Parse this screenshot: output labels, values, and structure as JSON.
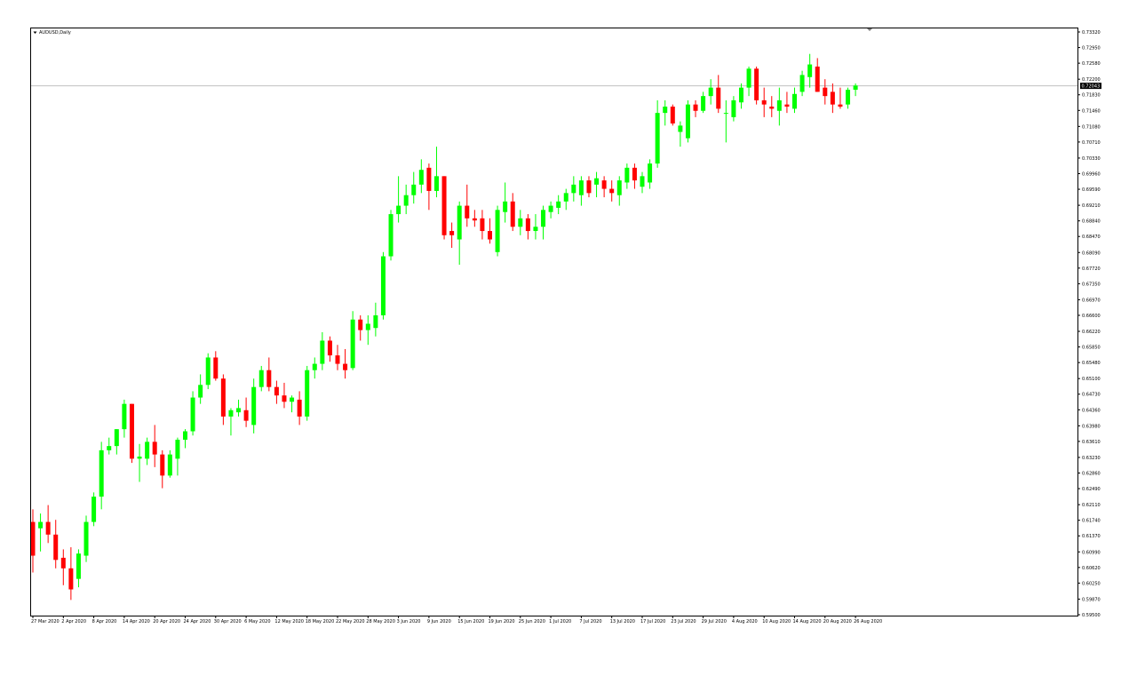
{
  "chart_data": {
    "type": "candlestick",
    "symbol": "AUDUSD,Daily",
    "current_price": 0.72043,
    "colors": {
      "bull": "#00ff00",
      "bear": "#ff0000",
      "frame": "#000000",
      "price_line": "#c0c0c0",
      "background": "#ffffff"
    },
    "y_range": [
      0.595,
      0.7332
    ],
    "y_ticks": [
      "0.73320",
      "0.72950",
      "0.72580",
      "0.72200",
      "0.71830",
      "0.71460",
      "0.71080",
      "0.70710",
      "0.70330",
      "0.69960",
      "0.69590",
      "0.69210",
      "0.68840",
      "0.68470",
      "0.68090",
      "0.67720",
      "0.67350",
      "0.66970",
      "0.66600",
      "0.66220",
      "0.65850",
      "0.65480",
      "0.65100",
      "0.64730",
      "0.64360",
      "0.63980",
      "0.63610",
      "0.63230",
      "0.62860",
      "0.62490",
      "0.62110",
      "0.61740",
      "0.61370",
      "0.60990",
      "0.60620",
      "0.60250",
      "0.59870",
      "0.59500"
    ],
    "x_labels": [
      {
        "bar": 0,
        "text": "27 Mar 2020"
      },
      {
        "bar": 4,
        "text": "2 Apr 2020"
      },
      {
        "bar": 8,
        "text": "8 Apr 2020"
      },
      {
        "bar": 12,
        "text": "14 Apr 2020"
      },
      {
        "bar": 16,
        "text": "20 Apr 2020"
      },
      {
        "bar": 20,
        "text": "24 Apr 2020"
      },
      {
        "bar": 24,
        "text": "30 Apr 2020"
      },
      {
        "bar": 28,
        "text": "6 May 2020"
      },
      {
        "bar": 32,
        "text": "12 May 2020"
      },
      {
        "bar": 36,
        "text": "18 May 2020"
      },
      {
        "bar": 40,
        "text": "22 May 2020"
      },
      {
        "bar": 44,
        "text": "28 May 2020"
      },
      {
        "bar": 48,
        "text": "3 Jun 2020"
      },
      {
        "bar": 52,
        "text": "9 Jun 2020"
      },
      {
        "bar": 56,
        "text": "15 Jun 2020"
      },
      {
        "bar": 60,
        "text": "19 Jun 2020"
      },
      {
        "bar": 64,
        "text": "25 Jun 2020"
      },
      {
        "bar": 68,
        "text": "1 Jul 2020"
      },
      {
        "bar": 72,
        "text": "7 Jul 2020"
      },
      {
        "bar": 76,
        "text": "13 Jul 2020"
      },
      {
        "bar": 80,
        "text": "17 Jul 2020"
      },
      {
        "bar": 84,
        "text": "23 Jul 2020"
      },
      {
        "bar": 88,
        "text": "29 Jul 2020"
      },
      {
        "bar": 92,
        "text": "4 Aug 2020"
      },
      {
        "bar": 96,
        "text": "10 Aug 2020"
      },
      {
        "bar": 100,
        "text": "14 Aug 2020"
      },
      {
        "bar": 104,
        "text": "20 Aug 2020"
      },
      {
        "bar": 108,
        "text": "26 Aug 2020"
      }
    ],
    "candles": [
      {
        "o": 0.617,
        "h": 0.62,
        "l": 0.605,
        "c": 0.609
      },
      {
        "o": 0.6155,
        "h": 0.619,
        "l": 0.61,
        "c": 0.617
      },
      {
        "o": 0.617,
        "h": 0.621,
        "l": 0.612,
        "c": 0.614
      },
      {
        "o": 0.614,
        "h": 0.6175,
        "l": 0.606,
        "c": 0.608
      },
      {
        "o": 0.6085,
        "h": 0.6105,
        "l": 0.602,
        "c": 0.606
      },
      {
        "o": 0.606,
        "h": 0.611,
        "l": 0.5985,
        "c": 0.601
      },
      {
        "o": 0.6035,
        "h": 0.6105,
        "l": 0.6015,
        "c": 0.6095
      },
      {
        "o": 0.609,
        "h": 0.6185,
        "l": 0.6075,
        "c": 0.617
      },
      {
        "o": 0.617,
        "h": 0.624,
        "l": 0.616,
        "c": 0.623
      },
      {
        "o": 0.623,
        "h": 0.636,
        "l": 0.62,
        "c": 0.634
      },
      {
        "o": 0.634,
        "h": 0.637,
        "l": 0.633,
        "c": 0.635
      },
      {
        "o": 0.635,
        "h": 0.639,
        "l": 0.633,
        "c": 0.639
      },
      {
        "o": 0.639,
        "h": 0.646,
        "l": 0.637,
        "c": 0.645
      },
      {
        "o": 0.645,
        "h": 0.645,
        "l": 0.631,
        "c": 0.632
      },
      {
        "o": 0.632,
        "h": 0.6355,
        "l": 0.6265,
        "c": 0.6325
      },
      {
        "o": 0.632,
        "h": 0.637,
        "l": 0.6305,
        "c": 0.636
      },
      {
        "o": 0.636,
        "h": 0.64,
        "l": 0.63,
        "c": 0.633
      },
      {
        "o": 0.633,
        "h": 0.634,
        "l": 0.625,
        "c": 0.628
      },
      {
        "o": 0.628,
        "h": 0.634,
        "l": 0.6275,
        "c": 0.633
      },
      {
        "o": 0.632,
        "h": 0.637,
        "l": 0.628,
        "c": 0.6365
      },
      {
        "o": 0.6365,
        "h": 0.639,
        "l": 0.6345,
        "c": 0.6385
      },
      {
        "o": 0.6385,
        "h": 0.648,
        "l": 0.6375,
        "c": 0.6465
      },
      {
        "o": 0.6465,
        "h": 0.652,
        "l": 0.645,
        "c": 0.6495
      },
      {
        "o": 0.6495,
        "h": 0.657,
        "l": 0.6485,
        "c": 0.656
      },
      {
        "o": 0.656,
        "h": 0.6575,
        "l": 0.6505,
        "c": 0.651
      },
      {
        "o": 0.651,
        "h": 0.652,
        "l": 0.64,
        "c": 0.642
      },
      {
        "o": 0.642,
        "h": 0.644,
        "l": 0.6375,
        "c": 0.6435
      },
      {
        "o": 0.643,
        "h": 0.646,
        "l": 0.642,
        "c": 0.644
      },
      {
        "o": 0.6435,
        "h": 0.6465,
        "l": 0.6395,
        "c": 0.641
      },
      {
        "o": 0.64,
        "h": 0.651,
        "l": 0.638,
        "c": 0.649
      },
      {
        "o": 0.649,
        "h": 0.654,
        "l": 0.648,
        "c": 0.653
      },
      {
        "o": 0.653,
        "h": 0.656,
        "l": 0.648,
        "c": 0.649
      },
      {
        "o": 0.649,
        "h": 0.6505,
        "l": 0.645,
        "c": 0.647
      },
      {
        "o": 0.647,
        "h": 0.65,
        "l": 0.644,
        "c": 0.6455
      },
      {
        "o": 0.6455,
        "h": 0.647,
        "l": 0.643,
        "c": 0.6465
      },
      {
        "o": 0.646,
        "h": 0.648,
        "l": 0.64,
        "c": 0.642
      },
      {
        "o": 0.642,
        "h": 0.654,
        "l": 0.641,
        "c": 0.653
      },
      {
        "o": 0.653,
        "h": 0.656,
        "l": 0.651,
        "c": 0.6545
      },
      {
        "o": 0.6545,
        "h": 0.662,
        "l": 0.653,
        "c": 0.66
      },
      {
        "o": 0.66,
        "h": 0.661,
        "l": 0.655,
        "c": 0.6565
      },
      {
        "o": 0.6565,
        "h": 0.659,
        "l": 0.653,
        "c": 0.6545
      },
      {
        "o": 0.6545,
        "h": 0.658,
        "l": 0.651,
        "c": 0.653
      },
      {
        "o": 0.6535,
        "h": 0.667,
        "l": 0.653,
        "c": 0.665
      },
      {
        "o": 0.665,
        "h": 0.666,
        "l": 0.66,
        "c": 0.6625
      },
      {
        "o": 0.6625,
        "h": 0.666,
        "l": 0.659,
        "c": 0.664
      },
      {
        "o": 0.663,
        "h": 0.669,
        "l": 0.661,
        "c": 0.666
      },
      {
        "o": 0.666,
        "h": 0.681,
        "l": 0.665,
        "c": 0.68
      },
      {
        "o": 0.68,
        "h": 0.691,
        "l": 0.679,
        "c": 0.69
      },
      {
        "o": 0.69,
        "h": 0.699,
        "l": 0.688,
        "c": 0.692
      },
      {
        "o": 0.692,
        "h": 0.697,
        "l": 0.69,
        "c": 0.6945
      },
      {
        "o": 0.6945,
        "h": 0.7,
        "l": 0.6925,
        "c": 0.697
      },
      {
        "o": 0.697,
        "h": 0.703,
        "l": 0.695,
        "c": 0.7005
      },
      {
        "o": 0.701,
        "h": 0.702,
        "l": 0.691,
        "c": 0.6955
      },
      {
        "o": 0.6955,
        "h": 0.706,
        "l": 0.694,
        "c": 0.699
      },
      {
        "o": 0.699,
        "h": 0.699,
        "l": 0.684,
        "c": 0.685
      },
      {
        "o": 0.686,
        "h": 0.688,
        "l": 0.682,
        "c": 0.685
      },
      {
        "o": 0.684,
        "h": 0.693,
        "l": 0.678,
        "c": 0.692
      },
      {
        "o": 0.692,
        "h": 0.697,
        "l": 0.687,
        "c": 0.689
      },
      {
        "o": 0.689,
        "h": 0.691,
        "l": 0.687,
        "c": 0.6885
      },
      {
        "o": 0.689,
        "h": 0.691,
        "l": 0.684,
        "c": 0.686
      },
      {
        "o": 0.686,
        "h": 0.689,
        "l": 0.683,
        "c": 0.684
      },
      {
        "o": 0.681,
        "h": 0.692,
        "l": 0.68,
        "c": 0.691
      },
      {
        "o": 0.6905,
        "h": 0.6975,
        "l": 0.688,
        "c": 0.693
      },
      {
        "o": 0.693,
        "h": 0.695,
        "l": 0.686,
        "c": 0.687
      },
      {
        "o": 0.687,
        "h": 0.691,
        "l": 0.685,
        "c": 0.689
      },
      {
        "o": 0.689,
        "h": 0.69,
        "l": 0.684,
        "c": 0.686
      },
      {
        "o": 0.686,
        "h": 0.69,
        "l": 0.684,
        "c": 0.687
      },
      {
        "o": 0.687,
        "h": 0.692,
        "l": 0.684,
        "c": 0.691
      },
      {
        "o": 0.6905,
        "h": 0.693,
        "l": 0.689,
        "c": 0.692
      },
      {
        "o": 0.6915,
        "h": 0.6945,
        "l": 0.69,
        "c": 0.693
      },
      {
        "o": 0.693,
        "h": 0.696,
        "l": 0.691,
        "c": 0.695
      },
      {
        "o": 0.695,
        "h": 0.699,
        "l": 0.693,
        "c": 0.697
      },
      {
        "o": 0.6945,
        "h": 0.699,
        "l": 0.692,
        "c": 0.698
      },
      {
        "o": 0.698,
        "h": 0.699,
        "l": 0.694,
        "c": 0.695
      },
      {
        "o": 0.697,
        "h": 0.7,
        "l": 0.694,
        "c": 0.6985
      },
      {
        "o": 0.698,
        "h": 0.699,
        "l": 0.694,
        "c": 0.696
      },
      {
        "o": 0.696,
        "h": 0.698,
        "l": 0.693,
        "c": 0.695
      },
      {
        "o": 0.6945,
        "h": 0.699,
        "l": 0.692,
        "c": 0.698
      },
      {
        "o": 0.6975,
        "h": 0.702,
        "l": 0.696,
        "c": 0.701
      },
      {
        "o": 0.701,
        "h": 0.702,
        "l": 0.696,
        "c": 0.698
      },
      {
        "o": 0.6965,
        "h": 0.7,
        "l": 0.695,
        "c": 0.699
      },
      {
        "o": 0.6975,
        "h": 0.703,
        "l": 0.696,
        "c": 0.702
      },
      {
        "o": 0.702,
        "h": 0.717,
        "l": 0.701,
        "c": 0.714
      },
      {
        "o": 0.714,
        "h": 0.717,
        "l": 0.711,
        "c": 0.7155
      },
      {
        "o": 0.7155,
        "h": 0.716,
        "l": 0.711,
        "c": 0.7115
      },
      {
        "o": 0.7095,
        "h": 0.712,
        "l": 0.706,
        "c": 0.711
      },
      {
        "o": 0.708,
        "h": 0.717,
        "l": 0.707,
        "c": 0.716
      },
      {
        "o": 0.716,
        "h": 0.717,
        "l": 0.713,
        "c": 0.7145
      },
      {
        "o": 0.7145,
        "h": 0.719,
        "l": 0.714,
        "c": 0.718
      },
      {
        "o": 0.718,
        "h": 0.722,
        "l": 0.716,
        "c": 0.72
      },
      {
        "o": 0.72,
        "h": 0.723,
        "l": 0.714,
        "c": 0.715
      },
      {
        "o": 0.714,
        "h": 0.717,
        "l": 0.707,
        "c": 0.714
      },
      {
        "o": 0.713,
        "h": 0.718,
        "l": 0.712,
        "c": 0.717
      },
      {
        "o": 0.7165,
        "h": 0.721,
        "l": 0.715,
        "c": 0.72
      },
      {
        "o": 0.72,
        "h": 0.725,
        "l": 0.718,
        "c": 0.7245
      },
      {
        "o": 0.7245,
        "h": 0.725,
        "l": 0.716,
        "c": 0.717
      },
      {
        "o": 0.717,
        "h": 0.72,
        "l": 0.713,
        "c": 0.716
      },
      {
        "o": 0.7155,
        "h": 0.718,
        "l": 0.713,
        "c": 0.715
      },
      {
        "o": 0.7145,
        "h": 0.72,
        "l": 0.711,
        "c": 0.717
      },
      {
        "o": 0.716,
        "h": 0.719,
        "l": 0.714,
        "c": 0.7155
      },
      {
        "o": 0.715,
        "h": 0.72,
        "l": 0.714,
        "c": 0.7185
      },
      {
        "o": 0.719,
        "h": 0.724,
        "l": 0.718,
        "c": 0.723
      },
      {
        "o": 0.7225,
        "h": 0.728,
        "l": 0.72,
        "c": 0.7255
      },
      {
        "o": 0.725,
        "h": 0.727,
        "l": 0.719,
        "c": 0.719
      },
      {
        "o": 0.72,
        "h": 0.722,
        "l": 0.716,
        "c": 0.718
      },
      {
        "o": 0.719,
        "h": 0.721,
        "l": 0.714,
        "c": 0.716
      },
      {
        "o": 0.716,
        "h": 0.72,
        "l": 0.715,
        "c": 0.7155
      },
      {
        "o": 0.716,
        "h": 0.72,
        "l": 0.715,
        "c": 0.7195
      },
      {
        "o": 0.7195,
        "h": 0.721,
        "l": 0.718,
        "c": 0.7205
      }
    ]
  }
}
